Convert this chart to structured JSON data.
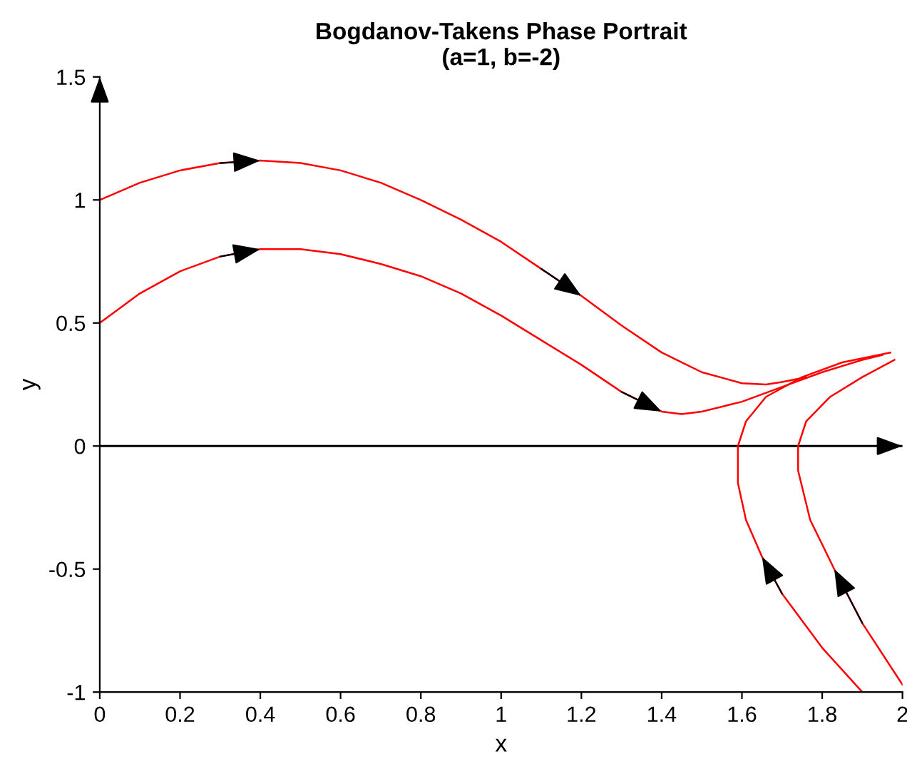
{
  "chart_data": {
    "type": "line",
    "title": "Bogdanov-Takens Phase Portrait\n(a=1, b=-2)",
    "xlabel": "x",
    "ylabel": "y",
    "xlim": [
      0,
      2
    ],
    "ylim": [
      -1,
      1.5
    ],
    "xticks": [
      0,
      0.2,
      0.4,
      0.6,
      0.8,
      1,
      1.2,
      1.4,
      1.6,
      1.8,
      2
    ],
    "yticks": [
      -1,
      -0.5,
      0,
      0.5,
      1,
      1.5
    ],
    "grid": false,
    "legend": false,
    "marker": "none",
    "line_style": "solid",
    "ref_lines": [
      {
        "axis": "y",
        "value": 0,
        "color": "#000000"
      }
    ],
    "series": [
      {
        "color": "#ff0000",
        "x": [
          0,
          0.1,
          0.2,
          0.3,
          0.4,
          0.5,
          0.6,
          0.7,
          0.8,
          0.9,
          1.0,
          1.1,
          1.2,
          1.3,
          1.4,
          1.5,
          1.6,
          1.66,
          1.7,
          1.76
        ],
        "values": [
          1.0,
          1.07,
          1.12,
          1.15,
          1.16,
          1.15,
          1.12,
          1.07,
          1.0,
          0.92,
          0.83,
          0.72,
          0.61,
          0.49,
          0.38,
          0.3,
          0.255,
          0.25,
          0.26,
          0.28
        ]
      },
      {
        "color": "#ff0000",
        "x": [
          0,
          0.1,
          0.2,
          0.3,
          0.4,
          0.5,
          0.6,
          0.7,
          0.8,
          0.9,
          1.0,
          1.1,
          1.2,
          1.3,
          1.4,
          1.45,
          1.5,
          1.6,
          1.7,
          1.8,
          1.9,
          1.95
        ],
        "values": [
          0.5,
          0.62,
          0.71,
          0.77,
          0.8,
          0.8,
          0.78,
          0.74,
          0.69,
          0.62,
          0.53,
          0.43,
          0.33,
          0.22,
          0.14,
          0.13,
          0.14,
          0.18,
          0.24,
          0.3,
          0.35,
          0.37
        ]
      },
      {
        "color": "#ff0000",
        "x": [
          1.9,
          1.8,
          1.7,
          1.65,
          1.61,
          1.59,
          1.59,
          1.61,
          1.66,
          1.75,
          1.85,
          1.97
        ],
        "values": [
          -1,
          -0.82,
          -0.6,
          -0.45,
          -0.3,
          -0.15,
          0.0,
          0.1,
          0.2,
          0.28,
          0.34,
          0.38
        ]
      },
      {
        "color": "#ff0000",
        "x": [
          2.0,
          1.9,
          1.83,
          1.77,
          1.74,
          1.74,
          1.76,
          1.82,
          1.9,
          1.98
        ],
        "values": [
          -0.97,
          -0.72,
          -0.5,
          -0.3,
          -0.1,
          0.0,
          0.1,
          0.2,
          0.28,
          0.35
        ]
      }
    ]
  }
}
